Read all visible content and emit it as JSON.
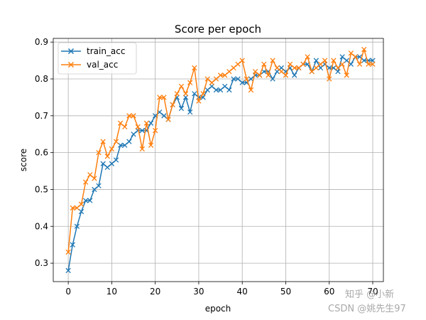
{
  "chart_data": {
    "type": "line",
    "title": "Score per epoch",
    "xlabel": "epoch",
    "ylabel": "score",
    "xlim": [
      -3.45,
      72.45
    ],
    "ylim": [
      0.25,
      0.91
    ],
    "xticks": [
      0,
      10,
      20,
      30,
      40,
      50,
      60,
      70
    ],
    "yticks": [
      0.3,
      0.4,
      0.5,
      0.6,
      0.7,
      0.8,
      0.9
    ],
    "ytick_labels": [
      "0.3",
      "0.4",
      "0.5",
      "0.6",
      "0.7",
      "0.8",
      "0.9"
    ],
    "grid": true,
    "legend_position": "upper-left",
    "marker": "x",
    "series": [
      {
        "name": "train_acc",
        "color": "#1f77b4",
        "values": [
          0.28,
          0.35,
          0.4,
          0.44,
          0.47,
          0.47,
          0.5,
          0.51,
          0.57,
          0.56,
          0.57,
          0.58,
          0.62,
          0.62,
          0.63,
          0.65,
          0.66,
          0.66,
          0.66,
          0.68,
          0.7,
          0.71,
          0.7,
          0.69,
          0.73,
          0.75,
          0.72,
          0.75,
          0.71,
          0.76,
          0.75,
          0.75,
          0.77,
          0.78,
          0.77,
          0.77,
          0.78,
          0.77,
          0.8,
          0.8,
          0.79,
          0.79,
          0.8,
          0.81,
          0.81,
          0.82,
          0.82,
          0.8,
          0.82,
          0.83,
          0.82,
          0.83,
          0.81,
          0.83,
          0.84,
          0.84,
          0.82,
          0.85,
          0.83,
          0.84,
          0.83,
          0.83,
          0.82,
          0.86,
          0.85,
          0.84,
          0.86,
          0.86,
          0.85,
          0.85,
          0.85
        ]
      },
      {
        "name": "val_acc",
        "color": "#ff7f0e",
        "values": [
          0.33,
          0.45,
          0.45,
          0.46,
          0.52,
          0.54,
          0.53,
          0.6,
          0.63,
          0.59,
          0.61,
          0.63,
          0.68,
          0.67,
          0.7,
          0.7,
          0.67,
          0.61,
          0.68,
          0.62,
          0.66,
          0.75,
          0.75,
          0.69,
          0.73,
          0.76,
          0.78,
          0.76,
          0.79,
          0.83,
          0.74,
          0.76,
          0.8,
          0.79,
          0.8,
          0.81,
          0.81,
          0.82,
          0.83,
          0.84,
          0.85,
          0.8,
          0.77,
          0.82,
          0.81,
          0.84,
          0.81,
          0.85,
          0.83,
          0.82,
          0.81,
          0.84,
          0.83,
          0.83,
          0.84,
          0.86,
          0.82,
          0.83,
          0.84,
          0.85,
          0.8,
          0.85,
          0.83,
          0.84,
          0.81,
          0.87,
          0.86,
          0.84,
          0.88,
          0.84,
          0.84
        ]
      }
    ]
  },
  "watermark": {
    "line1": "知乎 @小新",
    "line2": "CSDN @姚先生97"
  }
}
